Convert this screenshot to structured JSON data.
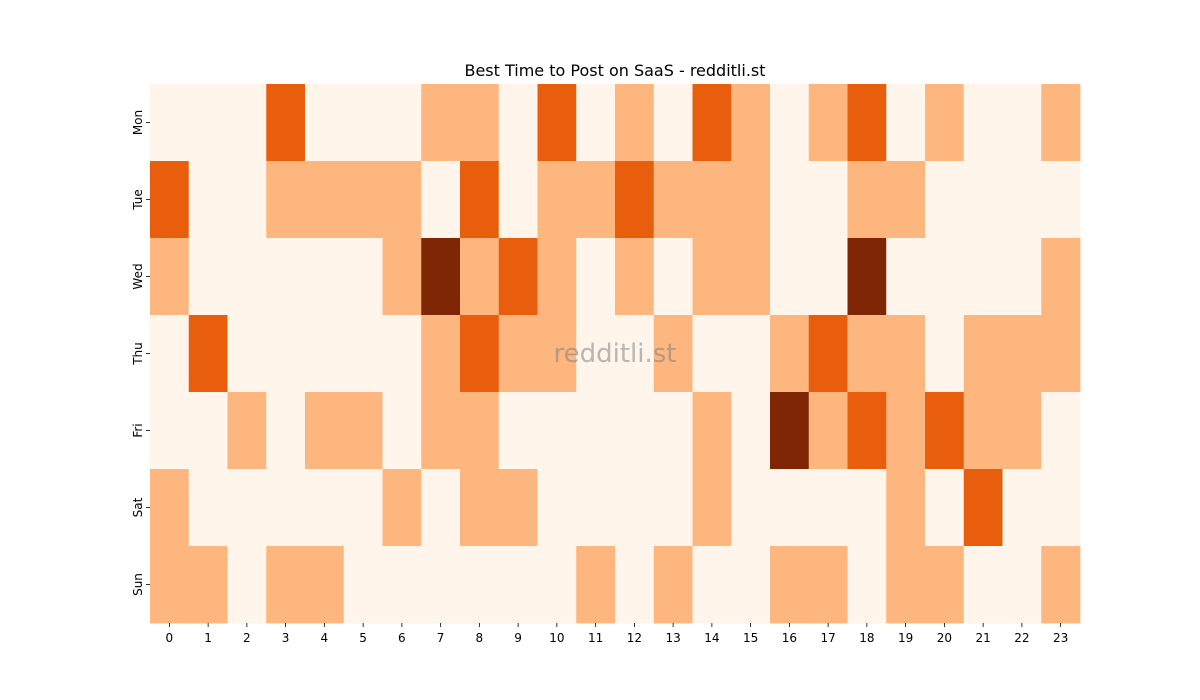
{
  "chart_data": {
    "type": "heatmap",
    "title": "Best Time to Post on SaaS - redditli.st",
    "watermark": "redditli.st",
    "xlabel": "",
    "ylabel": "",
    "x_categories": [
      "0",
      "1",
      "2",
      "3",
      "4",
      "5",
      "6",
      "7",
      "8",
      "9",
      "10",
      "11",
      "12",
      "13",
      "14",
      "15",
      "16",
      "17",
      "18",
      "19",
      "20",
      "21",
      "22",
      "23"
    ],
    "y_categories": [
      "Mon",
      "Tue",
      "Wed",
      "Thu",
      "Fri",
      "Sat",
      "Sun"
    ],
    "values": [
      [
        0,
        0,
        0,
        2,
        0,
        0,
        0,
        1,
        1,
        0,
        2,
        0,
        1,
        0,
        2,
        1,
        0,
        1,
        2,
        0,
        1,
        0,
        0,
        1
      ],
      [
        2,
        0,
        0,
        1,
        1,
        1,
        1,
        0,
        2,
        0,
        1,
        1,
        2,
        1,
        1,
        1,
        0,
        0,
        1,
        1,
        0,
        0,
        0,
        0
      ],
      [
        1,
        0,
        0,
        0,
        0,
        0,
        1,
        3,
        1,
        2,
        1,
        0,
        1,
        0,
        1,
        1,
        0,
        0,
        3,
        0,
        0,
        0,
        0,
        1
      ],
      [
        0,
        2,
        0,
        0,
        0,
        0,
        0,
        1,
        2,
        1,
        1,
        0,
        0,
        1,
        0,
        0,
        1,
        2,
        1,
        1,
        0,
        1,
        1,
        1
      ],
      [
        0,
        0,
        1,
        0,
        1,
        1,
        0,
        1,
        1,
        0,
        0,
        0,
        0,
        0,
        1,
        0,
        3,
        1,
        2,
        1,
        2,
        1,
        1,
        0
      ],
      [
        1,
        0,
        0,
        0,
        0,
        0,
        1,
        0,
        1,
        1,
        0,
        0,
        0,
        0,
        1,
        0,
        0,
        0,
        0,
        1,
        0,
        2,
        0,
        0
      ],
      [
        1,
        1,
        0,
        1,
        1,
        0,
        0,
        0,
        0,
        0,
        0,
        1,
        0,
        1,
        0,
        0,
        1,
        1,
        0,
        1,
        1,
        0,
        0,
        1
      ]
    ],
    "colors": [
      "#fff5eb",
      "#fdb77e",
      "#e95e0d",
      "#7f2704"
    ],
    "colorbar": false,
    "grid": false
  }
}
